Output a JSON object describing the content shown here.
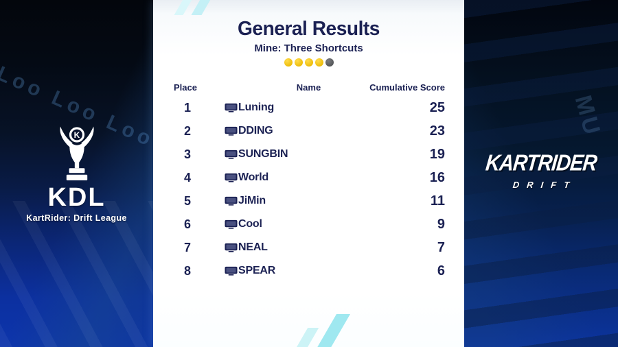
{
  "panel": {
    "title": "General Results",
    "subtitle": "Mine: Three Shortcuts",
    "progress": {
      "total_dots": 5,
      "completed_dots": 4
    }
  },
  "table": {
    "headers": {
      "place": "Place",
      "name": "Name",
      "score": "Cumulative Score"
    },
    "rows": [
      {
        "place": "1",
        "platform_icon": "pc-monitor-icon",
        "name": "Luning",
        "score": "25"
      },
      {
        "place": "2",
        "platform_icon": "pc-monitor-icon",
        "name": "DDING",
        "score": "23"
      },
      {
        "place": "3",
        "platform_icon": "pc-monitor-icon",
        "name": "SUNGBIN",
        "score": "19"
      },
      {
        "place": "4",
        "platform_icon": "pc-monitor-icon",
        "name": "World",
        "score": "16"
      },
      {
        "place": "5",
        "platform_icon": "pc-monitor-icon",
        "name": "JiMin",
        "score": "11"
      },
      {
        "place": "6",
        "platform_icon": "pc-monitor-icon",
        "name": "Cool",
        "score": "9"
      },
      {
        "place": "7",
        "platform_icon": "pc-monitor-icon",
        "name": "NEAL",
        "score": "7"
      },
      {
        "place": "8",
        "platform_icon": "pc-monitor-icon",
        "name": "SPEAR",
        "score": "6"
      }
    ]
  },
  "left_branding": {
    "logo_text": "KDL",
    "logo_subtitle": "KartRider: Drift League",
    "trophy_icon": "kdl-trophy-icon",
    "background_text": "Loo Loo Loo"
  },
  "right_branding": {
    "logo_text": "KARTRIDER",
    "logo_subtitle": "DRIFT",
    "background_text": "MU"
  },
  "colors": {
    "navy_text": "#1b2153",
    "dot_filled": "#edbd0a",
    "dot_empty": "#55575a",
    "accent_cyan": "#9fe8f0",
    "background_blue": "#0d35ac"
  }
}
